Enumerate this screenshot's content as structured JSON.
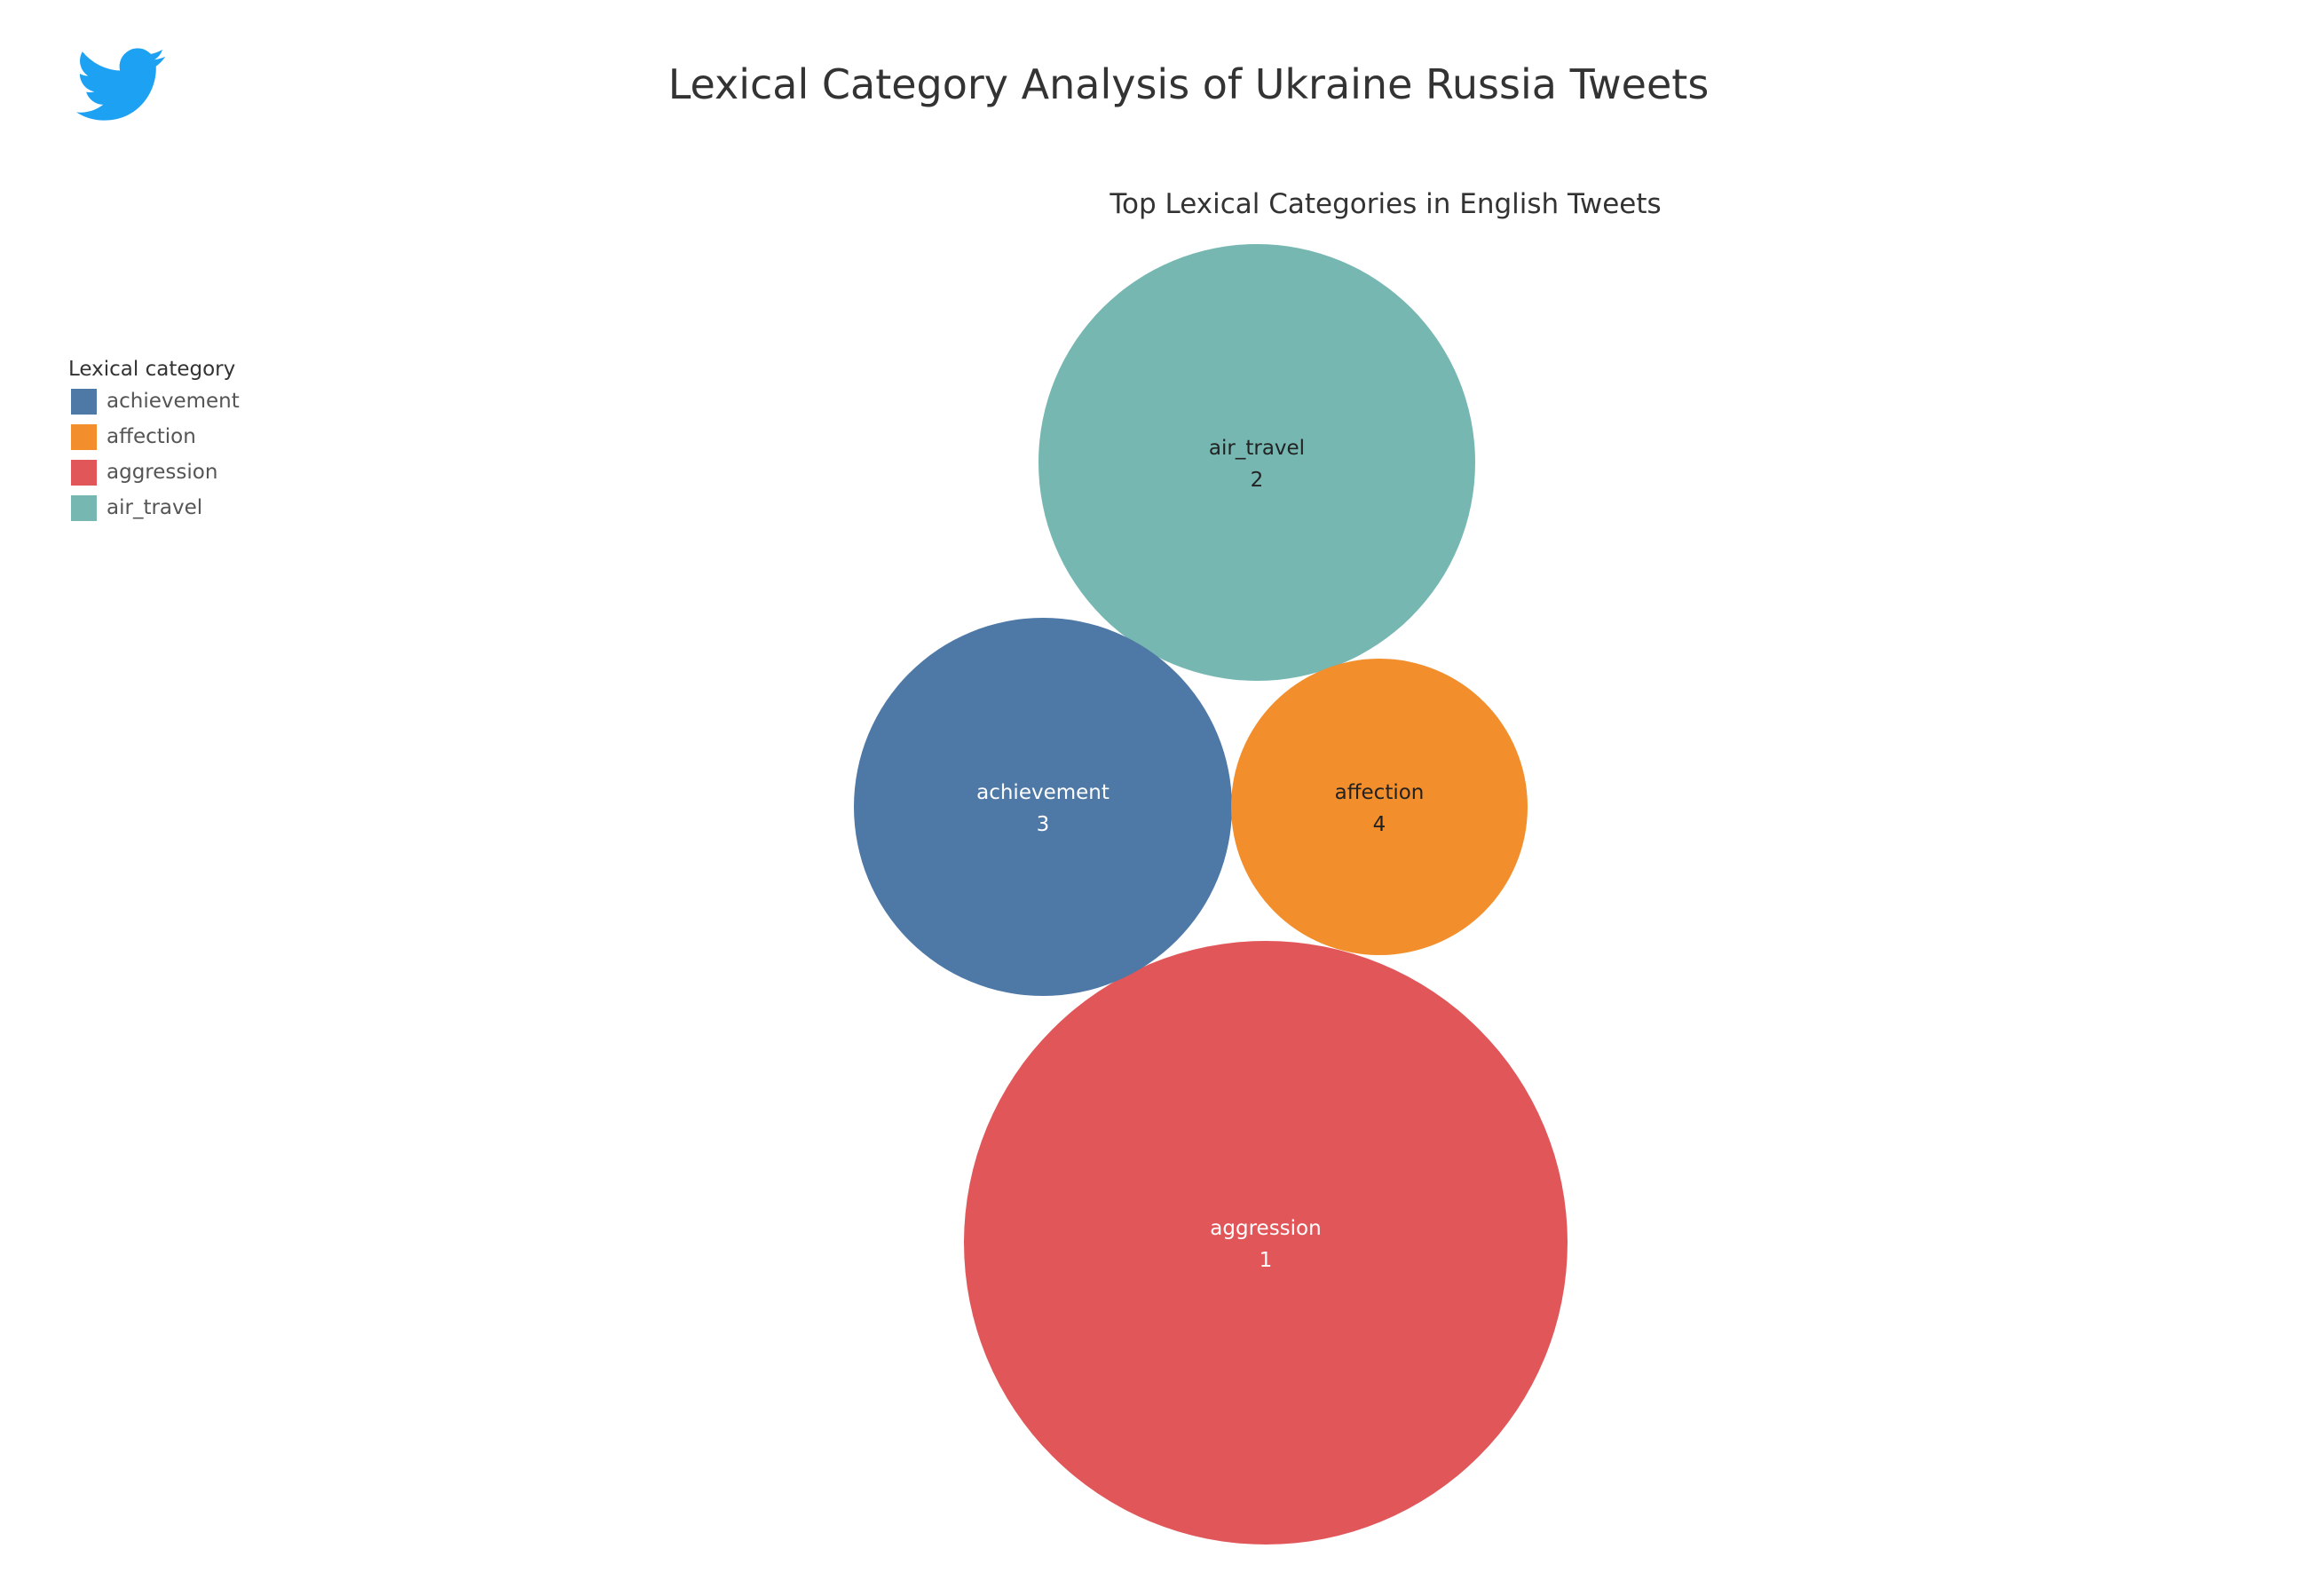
{
  "header": {
    "title": "Lexical Category Analysis of Ukraine Russia Tweets",
    "logo_icon": "twitter-bird-icon",
    "logo_color": "#1DA1F2"
  },
  "legend": {
    "title": "Lexical category",
    "items": [
      {
        "label": "achievement",
        "color": "#4E79A7"
      },
      {
        "label": "affection",
        "color": "#F28E2B"
      },
      {
        "label": "aggression",
        "color": "#E15759"
      },
      {
        "label": "air_travel",
        "color": "#76B7B2"
      }
    ]
  },
  "chart_data": {
    "type": "bubble",
    "title": "Top Lexical Categories in English Tweets",
    "legend_position": "left",
    "series": [
      {
        "name": "aggression",
        "rank": 1,
        "color": "#E15759",
        "text_color": "#ffffff"
      },
      {
        "name": "air_travel",
        "rank": 2,
        "color": "#76B7B2",
        "text_color": "#222222"
      },
      {
        "name": "achievement",
        "rank": 3,
        "color": "#4E79A7",
        "text_color": "#ffffff"
      },
      {
        "name": "affection",
        "rank": 4,
        "color": "#F28E2B",
        "text_color": "#222222"
      }
    ]
  }
}
